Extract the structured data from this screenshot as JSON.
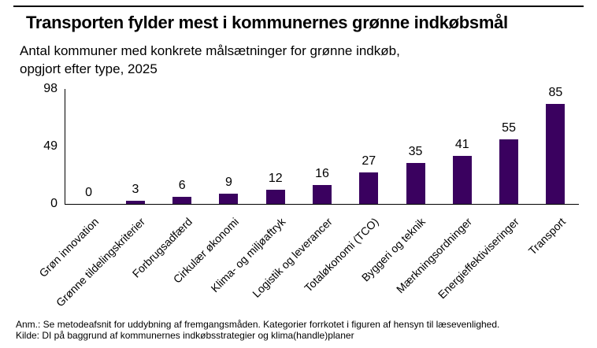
{
  "chart_data": {
    "type": "bar",
    "title": "Transporten fylder mest i kommunernes grønne indkøbsmål",
    "subtitle": "Antal kommuner med konkrete målsætninger for grønne indkøb,\nopgjort efter type, 2025",
    "categories": [
      "Grøn innovation",
      "Grønne tildelingskriterier",
      "Forbrugsadfærd",
      "Cirkulær økonomi",
      "Klima- og miljøaftryk",
      "Logistik og leverancer",
      "Totaløkonomi (TCO)",
      "Byggeri og teknik",
      "Mærkningsordninger",
      "Energieffektiviseringer",
      "Transport"
    ],
    "values": [
      0,
      3,
      6,
      9,
      12,
      16,
      27,
      35,
      41,
      55,
      85
    ],
    "xlabel": "",
    "ylabel": "",
    "ylim": [
      0,
      98
    ],
    "yticks": [
      0,
      49,
      98
    ],
    "bar_color": "#3a015f",
    "axis_color": "#000000",
    "grid": false,
    "legend": false,
    "data_labels_position": "outside-end",
    "category_label_rotation_deg": -45
  },
  "footer": {
    "note": "Anm.: Se metodeafsnit for uddybning af fremgangsmåden. Kategorier forrkotet i figuren af hensyn til læsevenlighed.",
    "source": "Kilde: DI på baggrund af kommunernes indkøbsstrategier og klima(handle)planer"
  }
}
